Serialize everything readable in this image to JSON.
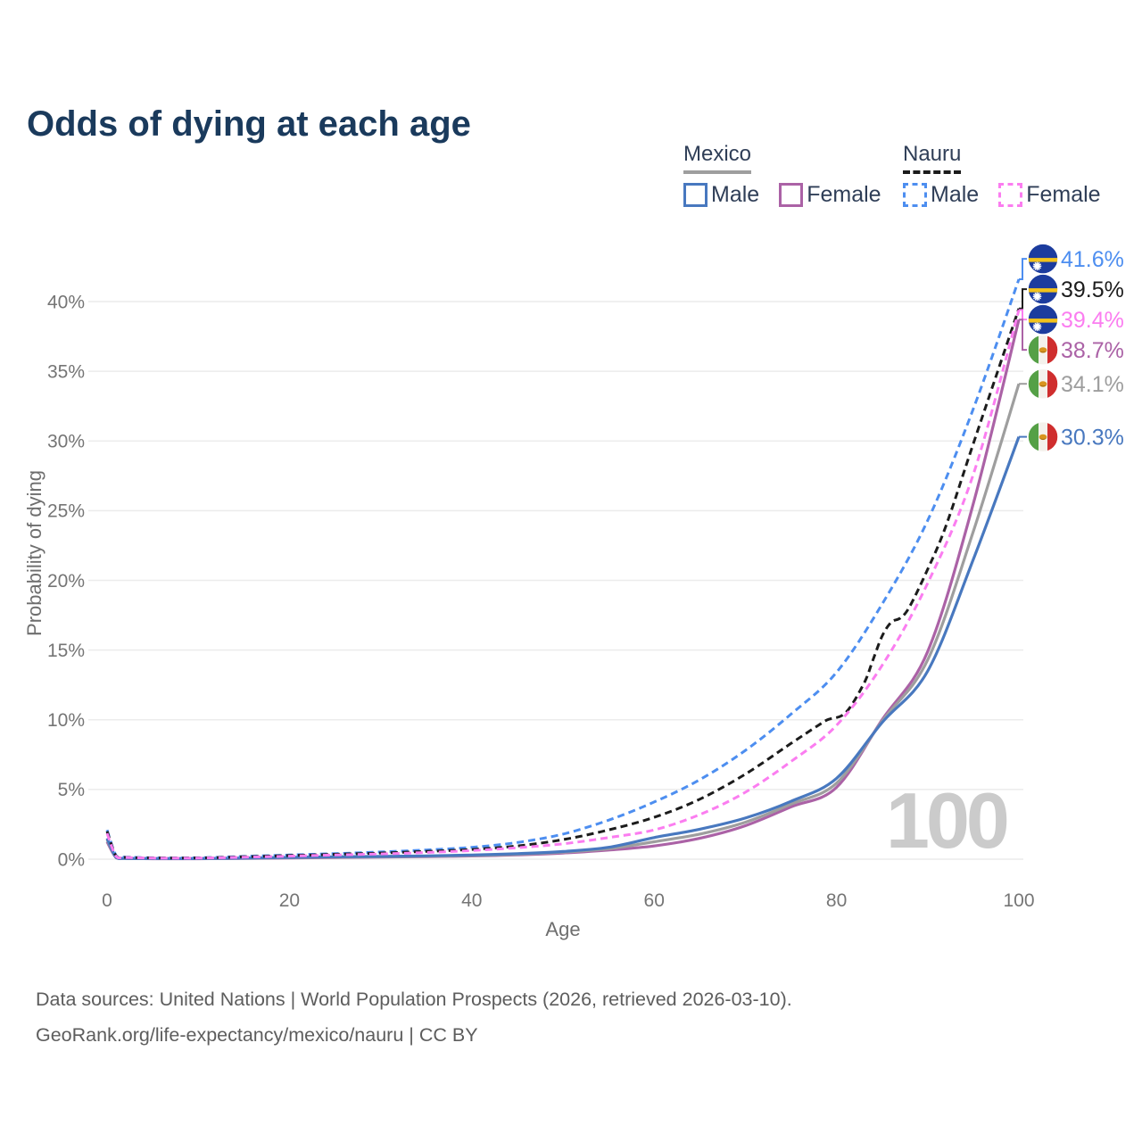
{
  "title": "Odds of dying at each age",
  "legend": {
    "groups": [
      {
        "country": "Mexico",
        "line_style": "solid",
        "underline_color": "#9e9e9e",
        "items": [
          {
            "label": "Male",
            "color": "#4878bf"
          },
          {
            "label": "Female",
            "color": "#ab62a6"
          }
        ]
      },
      {
        "country": "Nauru",
        "line_style": "dashed",
        "underline_color": "#1c1c1c",
        "items": [
          {
            "label": "Male",
            "color": "#4d8ef0"
          },
          {
            "label": "Female",
            "color": "#fb7df0"
          }
        ]
      }
    ]
  },
  "chart_data": {
    "type": "line",
    "title": "Odds of dying at each age",
    "xlabel": "Age",
    "ylabel": "Probability of dying",
    "x_ticks": [
      0,
      20,
      40,
      60,
      80,
      100
    ],
    "y_ticks": [
      "0%",
      "5%",
      "10%",
      "15%",
      "20%",
      "25%",
      "30%",
      "35%",
      "40%"
    ],
    "xlim": [
      0,
      100
    ],
    "ylim": [
      0,
      43
    ],
    "grid": "horizontal",
    "legend_position": "top-right",
    "watermark": "100",
    "series": [
      {
        "id": "nauru-male",
        "name": "Nauru Male",
        "color": "#4d8ef0",
        "dash": true,
        "flag": "nauru",
        "end_label": "41.6%",
        "x": [
          0,
          1,
          2,
          5,
          10,
          15,
          20,
          25,
          30,
          35,
          40,
          45,
          50,
          55,
          60,
          65,
          70,
          75,
          80,
          85,
          90,
          95,
          100
        ],
        "values": [
          2.1,
          0.25,
          0.15,
          0.1,
          0.1,
          0.2,
          0.3,
          0.4,
          0.52,
          0.66,
          0.85,
          1.2,
          1.8,
          2.8,
          4.1,
          5.7,
          7.8,
          10.4,
          13.4,
          18.3,
          24.3,
          32.3,
          41.6
        ]
      },
      {
        "id": "nauru-total",
        "name": "Nauru",
        "color": "#1c1c1c",
        "dash": true,
        "flag": "nauru",
        "end_label": "39.5%",
        "x": [
          0,
          1,
          2,
          5,
          10,
          15,
          20,
          25,
          30,
          35,
          40,
          45,
          50,
          55,
          60,
          65,
          70,
          75,
          78,
          79,
          81,
          83,
          84,
          85,
          86,
          87,
          88,
          90,
          92,
          95,
          100
        ],
        "values": [
          2.0,
          0.22,
          0.13,
          0.09,
          0.09,
          0.17,
          0.26,
          0.35,
          0.44,
          0.56,
          0.7,
          0.95,
          1.4,
          2.1,
          3.0,
          4.3,
          6.1,
          8.3,
          9.6,
          10.0,
          10.5,
          12.6,
          14.3,
          16.0,
          17.0,
          17.3,
          18.1,
          20.8,
          23.9,
          29.8,
          39.5
        ]
      },
      {
        "id": "nauru-female",
        "name": "Nauru Female",
        "color": "#fb7df0",
        "dash": true,
        "flag": "nauru",
        "end_label": "39.4%",
        "x": [
          0,
          1,
          2,
          5,
          10,
          15,
          20,
          25,
          30,
          35,
          40,
          45,
          50,
          55,
          60,
          65,
          70,
          75,
          80,
          85,
          90,
          95,
          100
        ],
        "values": [
          1.85,
          0.2,
          0.12,
          0.08,
          0.08,
          0.14,
          0.22,
          0.3,
          0.38,
          0.48,
          0.62,
          0.82,
          1.1,
          1.55,
          2.1,
          3.2,
          4.8,
          7.0,
          9.6,
          13.9,
          19.8,
          27.6,
          39.4
        ]
      },
      {
        "id": "mexico-female",
        "name": "Mexico Female",
        "color": "#ab62a6",
        "dash": false,
        "flag": "mexico",
        "end_label": "38.7%",
        "x": [
          0,
          1,
          2,
          5,
          10,
          15,
          20,
          25,
          30,
          35,
          40,
          45,
          50,
          55,
          60,
          65,
          70,
          75,
          80,
          85,
          90,
          95,
          100
        ],
        "values": [
          1.25,
          0.1,
          0.05,
          0.035,
          0.035,
          0.06,
          0.09,
          0.12,
          0.15,
          0.18,
          0.23,
          0.31,
          0.44,
          0.65,
          0.95,
          1.5,
          2.4,
          3.75,
          5.15,
          10.0,
          14.9,
          25.5,
          38.7
        ]
      },
      {
        "id": "mexico-total",
        "name": "Mexico",
        "color": "#9e9e9e",
        "dash": false,
        "flag": "mexico",
        "end_label": "34.1%",
        "x": [
          0,
          1,
          2,
          5,
          10,
          15,
          20,
          25,
          30,
          35,
          40,
          45,
          50,
          55,
          60,
          65,
          70,
          75,
          80,
          85,
          90,
          95,
          100
        ],
        "values": [
          1.4,
          0.11,
          0.055,
          0.04,
          0.04,
          0.07,
          0.11,
          0.145,
          0.175,
          0.21,
          0.26,
          0.35,
          0.5,
          0.75,
          1.25,
          1.8,
          2.65,
          3.95,
          5.45,
          9.9,
          14.3,
          23.5,
          34.1
        ]
      },
      {
        "id": "mexico-male",
        "name": "Mexico Male",
        "color": "#4878bf",
        "dash": false,
        "flag": "mexico",
        "end_label": "30.3%",
        "x": [
          0,
          1,
          2,
          5,
          10,
          15,
          20,
          25,
          30,
          35,
          40,
          45,
          50,
          55,
          60,
          65,
          70,
          75,
          80,
          85,
          90,
          95,
          100
        ],
        "values": [
          1.5,
          0.12,
          0.06,
          0.045,
          0.045,
          0.08,
          0.13,
          0.17,
          0.2,
          0.24,
          0.3,
          0.4,
          0.55,
          0.85,
          1.55,
          2.15,
          2.95,
          4.15,
          5.8,
          9.8,
          13.5,
          21.5,
          30.3
        ]
      }
    ]
  },
  "footer": {
    "line1": "Data sources: United Nations | World Population Prospects (2026, retrieved 2026-03-10).",
    "line2": "GeoRank.org/life-expectancy/mexico/nauru | CC BY"
  }
}
